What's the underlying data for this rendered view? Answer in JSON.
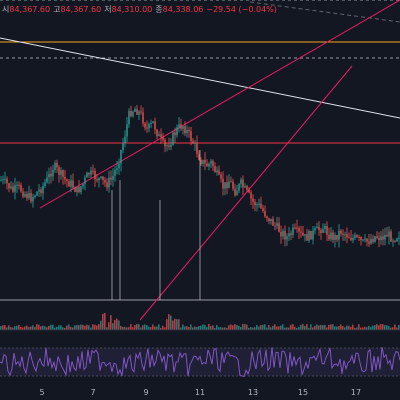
{
  "ohlc": {
    "open_label": "시",
    "open_value": "84,367.60",
    "high_label": "고",
    "high_value": "84,367.60",
    "low_label": "저",
    "low_value": "84,310.00",
    "close_label": "종",
    "close_value": "84,338.06",
    "change": "−29.54 (−0.04%)"
  },
  "colors": {
    "background": "#131722",
    "up": "#26a69a",
    "down": "#ef5350",
    "trendline": "#e91e63",
    "horizontal_orange": "#f7a21b",
    "horizontal_red": "#f23645",
    "horizontal_white": "#d1d4dc",
    "rsi": "#7e57c2",
    "grid_dash": "#9598a1"
  },
  "chart_data": [
    {
      "type": "candlestick",
      "title": "",
      "xlabel": "",
      "ylabel": "",
      "x_tick_labels": [
        "5",
        "7",
        "9",
        "11",
        "13",
        "15",
        "17"
      ],
      "y_axis_visible": false,
      "grid": false,
      "candles_rendered": "approximate",
      "price_path_relative": [
        0.62,
        0.6,
        0.56,
        0.58,
        0.55,
        0.52,
        0.55,
        0.58,
        0.63,
        0.7,
        0.66,
        0.62,
        0.6,
        0.56,
        0.6,
        0.66,
        0.64,
        0.62,
        0.6,
        0.63,
        0.72,
        0.85,
        1.0,
        1.02,
        0.98,
        0.9,
        0.94,
        0.86,
        0.8,
        0.84,
        0.9,
        0.93,
        0.88,
        0.82,
        0.74,
        0.7,
        0.72,
        0.64,
        0.58,
        0.62,
        0.56,
        0.6,
        0.55,
        0.5,
        0.48,
        0.44,
        0.4,
        0.36,
        0.33,
        0.3,
        0.34,
        0.32,
        0.3,
        0.32,
        0.34,
        0.36,
        0.32,
        0.3,
        0.34,
        0.32,
        0.3,
        0.29,
        0.27,
        0.29,
        0.31,
        0.3,
        0.32,
        0.3,
        0.32
      ],
      "volume_pane": true,
      "rsi_pane": true
    }
  ]
}
